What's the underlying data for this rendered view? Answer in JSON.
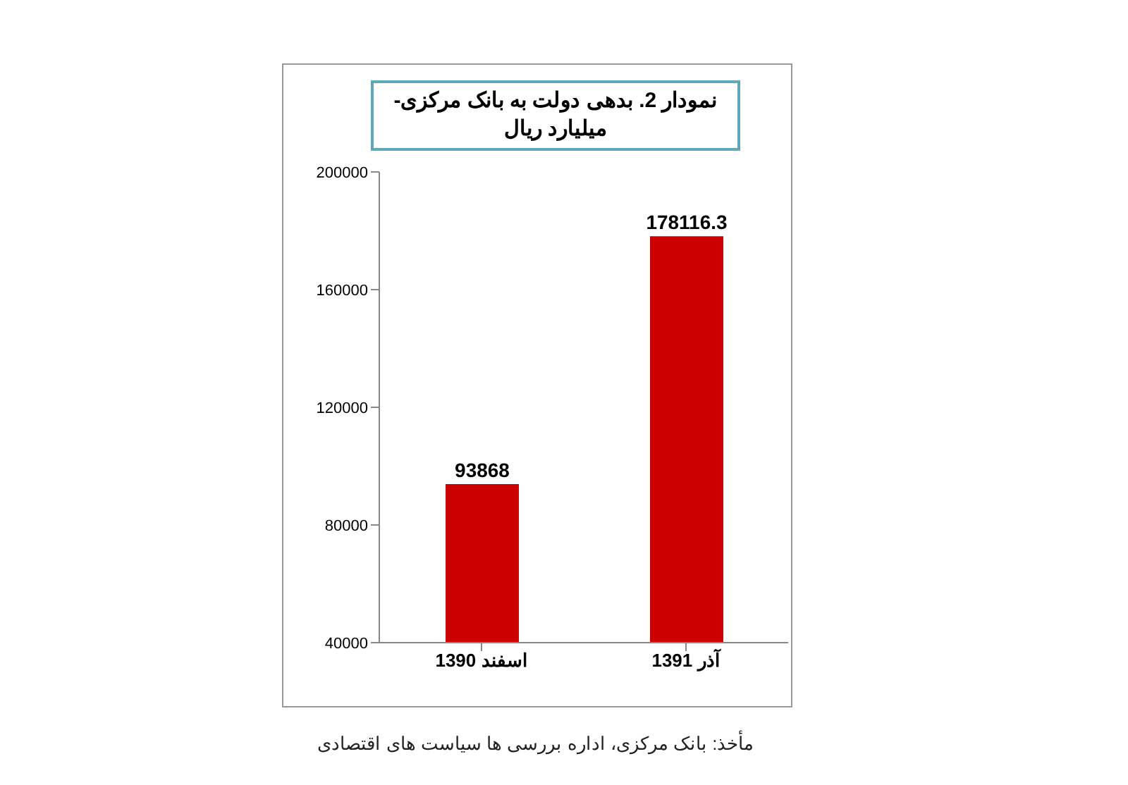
{
  "chart_data": {
    "type": "bar",
    "title": "نمودار 2. بدهی دولت به بانک مرکزی-میلیارد ریال",
    "categories": [
      "اسفند 1390",
      "آذر 1391"
    ],
    "values": [
      93868,
      178116.3
    ],
    "color": "#cc0000",
    "ylim": [
      40000,
      200000
    ],
    "yticks": [
      40000,
      80000,
      120000,
      160000,
      200000
    ],
    "grid": false,
    "data_labels": true,
    "annotations": [
      "مأخذ: بانک مرکزی، اداره بررسی ها سیاست های اقتصادی"
    ]
  }
}
